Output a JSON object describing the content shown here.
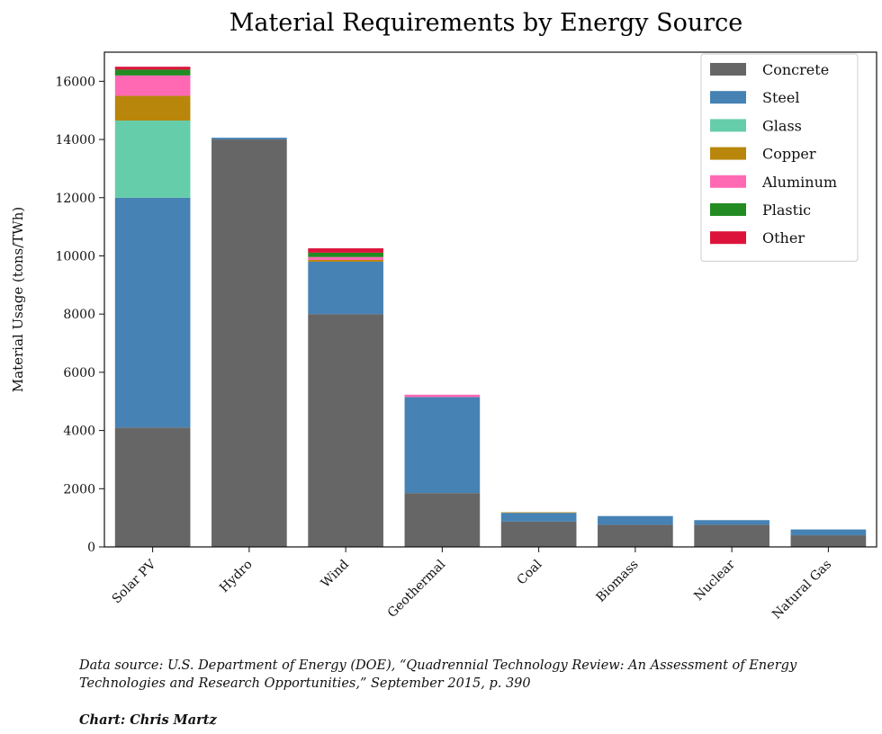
{
  "chart_data": {
    "type": "bar",
    "stacked": true,
    "title": "Material Requirements by Energy Source",
    "ylabel": "Material Usage (tons/TWh)",
    "xlabel": "",
    "ylim": [
      0,
      17000
    ],
    "yticks": [
      0,
      2000,
      4000,
      6000,
      8000,
      10000,
      12000,
      14000,
      16000
    ],
    "grid": false,
    "legend_position": "top-right",
    "categories": [
      "Solar PV",
      "Hydro",
      "Wind",
      "Geothermal",
      "Coal",
      "Biomass",
      "Nuclear",
      "Natural Gas"
    ],
    "series": [
      {
        "name": "Concrete",
        "color": "#666666",
        "values": [
          4100,
          14000,
          8000,
          1850,
          870,
          760,
          760,
          400
        ]
      },
      {
        "name": "Steel",
        "color": "#4682b4",
        "values": [
          7900,
          60,
          1800,
          3300,
          300,
          300,
          160,
          200
        ]
      },
      {
        "name": "Glass",
        "color": "#66cdaa",
        "values": [
          2650,
          0,
          0,
          0,
          0,
          0,
          0,
          0
        ]
      },
      {
        "name": "Copper",
        "color": "#b8860b",
        "values": [
          850,
          0,
          60,
          0,
          20,
          0,
          0,
          0
        ]
      },
      {
        "name": "Aluminum",
        "color": "#ff69b4",
        "values": [
          700,
          0,
          100,
          80,
          0,
          0,
          0,
          0
        ]
      },
      {
        "name": "Plastic",
        "color": "#228b22",
        "values": [
          200,
          0,
          150,
          0,
          0,
          0,
          0,
          0
        ]
      },
      {
        "name": "Other",
        "color": "#dc143c",
        "values": [
          100,
          0,
          150,
          0,
          0,
          0,
          0,
          0
        ]
      }
    ]
  },
  "footer": {
    "source": "Data source: U.S. Department of Energy (DOE), “Quadrennial Technology Review: An Assessment of Energy Technologies and Research Opportunities,” September 2015, p. 390",
    "credit": "Chart: Chris Martz"
  }
}
